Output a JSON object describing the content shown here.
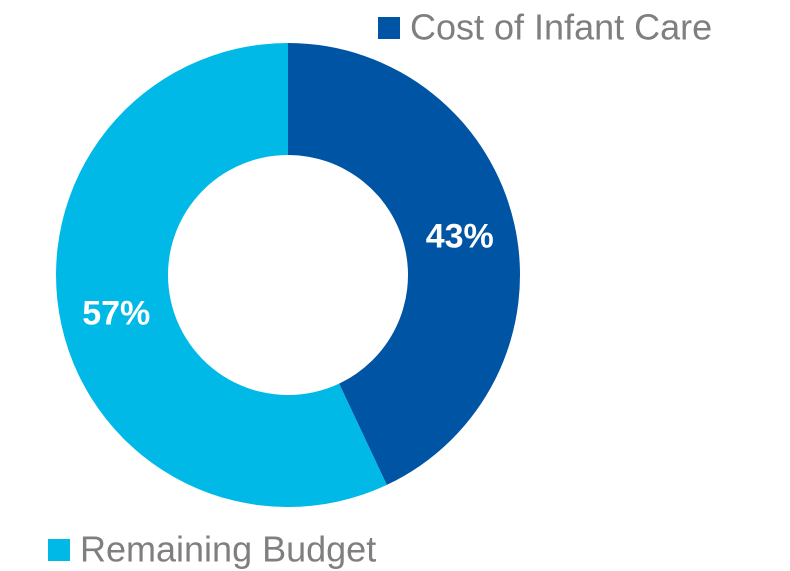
{
  "chart_data": {
    "type": "donut",
    "categories": [
      "Cost of Infant Care",
      "Remaining Budget"
    ],
    "values": [
      43,
      57
    ],
    "value_labels": [
      "43%",
      "57%"
    ],
    "colors": [
      "#0054a4",
      "#00b9e6"
    ]
  }
}
